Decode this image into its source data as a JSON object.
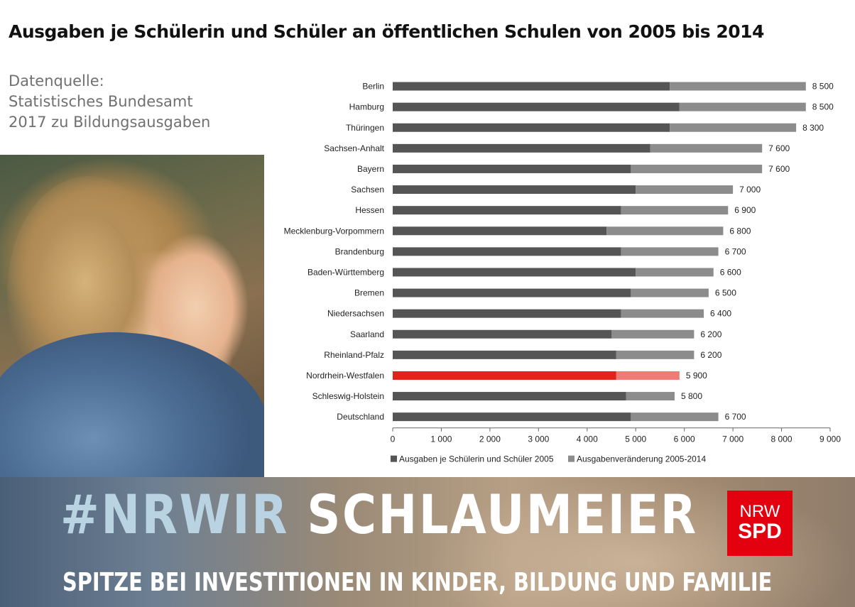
{
  "title": "Ausgaben je Schülerin und Schüler an öffentlichen Schulen von 2005 bis 2014",
  "source": [
    "Datenquelle:",
    "Statistisches Bundesamt",
    "2017 zu Bildungsausgaben"
  ],
  "banner": {
    "hashtag_part1": "#NRWIR",
    "hashtag_part2": "SCHLAUMEIER",
    "slogan": "SPITZE BEI INVESTITIONEN IN KINDER, BILDUNG UND FAMILIE"
  },
  "logo": {
    "line1": "NRW",
    "line2": "SPD",
    "color": "#e3000f"
  },
  "chart_data": {
    "type": "bar",
    "orientation": "horizontal",
    "stacked": true,
    "categories": [
      "Berlin",
      "Hamburg",
      "Thüringen",
      "Sachsen-Anhalt",
      "Bayern",
      "Sachsen",
      "Hessen",
      "Mecklenburg-Vorpommern",
      "Brandenburg",
      "Baden-Württemberg",
      "Bremen",
      "Niedersachsen",
      "Saarland",
      "Rheinland-Pfalz",
      "Nordrhein-Westfalen",
      "Schleswig-Holstein",
      "Deutschland"
    ],
    "series": [
      {
        "name": "Ausgaben je Schülerin und Schüler 2005",
        "color": "#555555",
        "values": [
          5700,
          5900,
          5700,
          5300,
          4900,
          5000,
          4700,
          4400,
          4700,
          5000,
          4900,
          4700,
          4500,
          4600,
          4600,
          4800,
          4900
        ]
      },
      {
        "name": "Ausgabenveränderung 2005-2014",
        "color": "#8c8c8c",
        "values": [
          2800,
          2600,
          2600,
          2300,
          2700,
          2000,
          2200,
          2400,
          2000,
          1600,
          1600,
          1700,
          1700,
          1600,
          1300,
          1000,
          1800
        ]
      }
    ],
    "total_labels": [
      "8 500",
      "8 500",
      "8 300",
      "7 600",
      "7 600",
      "7 000",
      "6 900",
      "6 800",
      "6 700",
      "6 600",
      "6 500",
      "6 400",
      "6 200",
      "6 200",
      "5 900",
      "5 800",
      "6 700"
    ],
    "highlight": {
      "category": "Nordrhein-Westfalen",
      "color_base": "#e2231a",
      "color_change": "#ef7b74"
    },
    "xlim": [
      0,
      9000
    ],
    "x_ticks": [
      0,
      1000,
      2000,
      3000,
      4000,
      5000,
      6000,
      7000,
      8000,
      9000
    ],
    "x_tick_labels": [
      "0",
      "1 000",
      "2 000",
      "3 000",
      "4 000",
      "5 000",
      "6 000",
      "7 000",
      "8 000",
      "9 000"
    ],
    "grid": false,
    "legend_position": "bottom"
  }
}
